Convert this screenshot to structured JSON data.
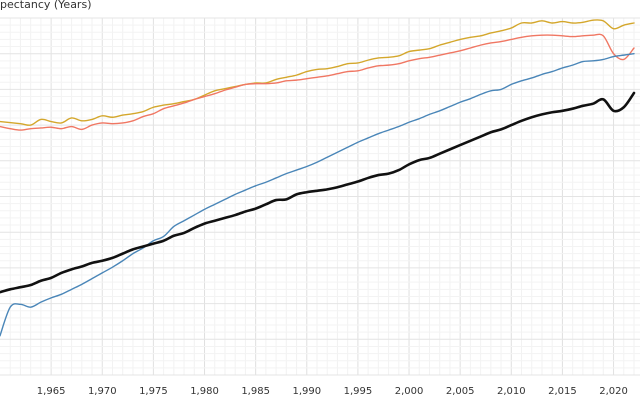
{
  "chart_data": {
    "type": "line",
    "ylabel": "pectancy (Years)",
    "grid": true,
    "x_ticks": [
      {
        "value": 1965,
        "label": "1,965"
      },
      {
        "value": 1970,
        "label": "1,970"
      },
      {
        "value": 1975,
        "label": "1,975"
      },
      {
        "value": 1980,
        "label": "1,980"
      },
      {
        "value": 1985,
        "label": "1,985"
      },
      {
        "value": 1990,
        "label": "1,990"
      },
      {
        "value": 1995,
        "label": "1,995"
      },
      {
        "value": 2000,
        "label": "2,000"
      },
      {
        "value": 2005,
        "label": "2,005"
      },
      {
        "value": 2010,
        "label": "2,010"
      },
      {
        "value": 2015,
        "label": "2,015"
      },
      {
        "value": 2020,
        "label": "2,020"
      }
    ],
    "series": [
      {
        "color": "#d4a72c",
        "points": [
          [
            1960,
            60.5
          ],
          [
            1962,
            60.2
          ],
          [
            1963,
            60.0
          ],
          [
            1964,
            60.8
          ],
          [
            1965,
            60.5
          ],
          [
            1966,
            60.3
          ],
          [
            1967,
            61.0
          ],
          [
            1968,
            60.6
          ],
          [
            1969,
            60.8
          ],
          [
            1970,
            61.3
          ],
          [
            1971,
            61.1
          ],
          [
            1972,
            61.4
          ],
          [
            1973,
            61.6
          ],
          [
            1974,
            61.9
          ],
          [
            1975,
            62.5
          ],
          [
            1976,
            62.8
          ],
          [
            1977,
            63.0
          ],
          [
            1978,
            63.3
          ],
          [
            1979,
            63.6
          ],
          [
            1980,
            64.2
          ],
          [
            1981,
            64.8
          ],
          [
            1982,
            65.1
          ],
          [
            1983,
            65.4
          ],
          [
            1984,
            65.7
          ],
          [
            1985,
            65.9
          ],
          [
            1986,
            65.9
          ],
          [
            1987,
            66.4
          ],
          [
            1988,
            66.7
          ],
          [
            1989,
            67.0
          ],
          [
            1990,
            67.5
          ],
          [
            1991,
            67.8
          ],
          [
            1992,
            67.9
          ],
          [
            1993,
            68.2
          ],
          [
            1994,
            68.6
          ],
          [
            1995,
            68.7
          ],
          [
            1996,
            69.1
          ],
          [
            1997,
            69.4
          ],
          [
            1998,
            69.5
          ],
          [
            1999,
            69.7
          ],
          [
            2000,
            70.3
          ],
          [
            2001,
            70.5
          ],
          [
            2002,
            70.7
          ],
          [
            2003,
            71.2
          ],
          [
            2004,
            71.6
          ],
          [
            2005,
            72.0
          ],
          [
            2006,
            72.3
          ],
          [
            2007,
            72.5
          ],
          [
            2008,
            72.9
          ],
          [
            2009,
            73.2
          ],
          [
            2010,
            73.6
          ],
          [
            2011,
            74.3
          ],
          [
            2012,
            74.3
          ],
          [
            2013,
            74.6
          ],
          [
            2014,
            74.3
          ],
          [
            2015,
            74.5
          ],
          [
            2016,
            74.3
          ],
          [
            2017,
            74.4
          ],
          [
            2018,
            74.7
          ],
          [
            2019,
            74.6
          ],
          [
            2020,
            73.5
          ],
          [
            2021,
            74.0
          ],
          [
            2022,
            74.3
          ]
        ]
      },
      {
        "color": "#f07763",
        "points": [
          [
            1960,
            59.8
          ],
          [
            1961,
            59.5
          ],
          [
            1962,
            59.3
          ],
          [
            1963,
            59.5
          ],
          [
            1964,
            59.6
          ],
          [
            1965,
            59.7
          ],
          [
            1966,
            59.5
          ],
          [
            1967,
            59.8
          ],
          [
            1968,
            59.4
          ],
          [
            1969,
            60.0
          ],
          [
            1970,
            60.3
          ],
          [
            1971,
            60.2
          ],
          [
            1972,
            60.3
          ],
          [
            1973,
            60.6
          ],
          [
            1974,
            61.2
          ],
          [
            1975,
            61.6
          ],
          [
            1976,
            62.3
          ],
          [
            1977,
            62.7
          ],
          [
            1978,
            63.1
          ],
          [
            1979,
            63.6
          ],
          [
            1980,
            64.0
          ],
          [
            1981,
            64.4
          ],
          [
            1982,
            64.9
          ],
          [
            1983,
            65.3
          ],
          [
            1984,
            65.7
          ],
          [
            1985,
            65.8
          ],
          [
            1986,
            65.8
          ],
          [
            1987,
            65.9
          ],
          [
            1988,
            66.2
          ],
          [
            1989,
            66.3
          ],
          [
            1990,
            66.5
          ],
          [
            1991,
            66.7
          ],
          [
            1992,
            66.9
          ],
          [
            1993,
            67.2
          ],
          [
            1994,
            67.5
          ],
          [
            1995,
            67.6
          ],
          [
            1996,
            68.0
          ],
          [
            1997,
            68.3
          ],
          [
            1998,
            68.4
          ],
          [
            1999,
            68.6
          ],
          [
            2000,
            69.0
          ],
          [
            2001,
            69.3
          ],
          [
            2002,
            69.5
          ],
          [
            2003,
            69.8
          ],
          [
            2004,
            70.1
          ],
          [
            2005,
            70.4
          ],
          [
            2006,
            70.8
          ],
          [
            2007,
            71.2
          ],
          [
            2008,
            71.5
          ],
          [
            2009,
            71.7
          ],
          [
            2010,
            72.0
          ],
          [
            2011,
            72.3
          ],
          [
            2012,
            72.5
          ],
          [
            2013,
            72.6
          ],
          [
            2014,
            72.6
          ],
          [
            2015,
            72.5
          ],
          [
            2016,
            72.4
          ],
          [
            2017,
            72.5
          ],
          [
            2018,
            72.6
          ],
          [
            2019,
            72.5
          ],
          [
            2020,
            70.0
          ],
          [
            2021,
            69.2
          ],
          [
            2022,
            70.8
          ]
        ]
      },
      {
        "color": "#4a86b8",
        "points": [
          [
            1960,
            30.5
          ],
          [
            1961,
            34.5
          ],
          [
            1962,
            34.9
          ],
          [
            1963,
            34.5
          ],
          [
            1964,
            35.2
          ],
          [
            1965,
            35.8
          ],
          [
            1966,
            36.3
          ],
          [
            1967,
            37.0
          ],
          [
            1968,
            37.7
          ],
          [
            1969,
            38.5
          ],
          [
            1970,
            39.3
          ],
          [
            1971,
            40.1
          ],
          [
            1972,
            41.0
          ],
          [
            1973,
            42.0
          ],
          [
            1974,
            42.8
          ],
          [
            1975,
            43.8
          ],
          [
            1976,
            44.4
          ],
          [
            1977,
            45.8
          ],
          [
            1978,
            46.6
          ],
          [
            1979,
            47.4
          ],
          [
            1980,
            48.2
          ],
          [
            1981,
            48.9
          ],
          [
            1982,
            49.6
          ],
          [
            1983,
            50.3
          ],
          [
            1984,
            50.9
          ],
          [
            1985,
            51.5
          ],
          [
            1986,
            52.0
          ],
          [
            1987,
            52.6
          ],
          [
            1988,
            53.2
          ],
          [
            1989,
            53.7
          ],
          [
            1990,
            54.2
          ],
          [
            1991,
            54.8
          ],
          [
            1992,
            55.5
          ],
          [
            1993,
            56.2
          ],
          [
            1994,
            56.9
          ],
          [
            1995,
            57.6
          ],
          [
            1996,
            58.2
          ],
          [
            1997,
            58.8
          ],
          [
            1998,
            59.3
          ],
          [
            1999,
            59.8
          ],
          [
            2000,
            60.4
          ],
          [
            2001,
            60.9
          ],
          [
            2002,
            61.5
          ],
          [
            2003,
            62.0
          ],
          [
            2004,
            62.6
          ],
          [
            2005,
            63.2
          ],
          [
            2006,
            63.7
          ],
          [
            2007,
            64.3
          ],
          [
            2008,
            64.8
          ],
          [
            2009,
            65.0
          ],
          [
            2010,
            65.7
          ],
          [
            2011,
            66.2
          ],
          [
            2012,
            66.6
          ],
          [
            2013,
            67.1
          ],
          [
            2014,
            67.5
          ],
          [
            2015,
            68.0
          ],
          [
            2016,
            68.4
          ],
          [
            2017,
            68.9
          ],
          [
            2018,
            69.0
          ],
          [
            2019,
            69.2
          ],
          [
            2020,
            69.6
          ],
          [
            2021,
            69.8
          ],
          [
            2022,
            70.0
          ]
        ]
      },
      {
        "color": "#111111",
        "points": [
          [
            1960,
            36.6
          ],
          [
            1961,
            37.0
          ],
          [
            1962,
            37.3
          ],
          [
            1963,
            37.6
          ],
          [
            1964,
            38.2
          ],
          [
            1965,
            38.6
          ],
          [
            1966,
            39.3
          ],
          [
            1967,
            39.8
          ],
          [
            1968,
            40.2
          ],
          [
            1969,
            40.7
          ],
          [
            1970,
            41.0
          ],
          [
            1971,
            41.4
          ],
          [
            1972,
            42.0
          ],
          [
            1973,
            42.6
          ],
          [
            1974,
            43.0
          ],
          [
            1975,
            43.4
          ],
          [
            1976,
            43.8
          ],
          [
            1977,
            44.5
          ],
          [
            1978,
            44.9
          ],
          [
            1979,
            45.6
          ],
          [
            1980,
            46.2
          ],
          [
            1981,
            46.6
          ],
          [
            1982,
            47.0
          ],
          [
            1983,
            47.4
          ],
          [
            1984,
            47.9
          ],
          [
            1985,
            48.3
          ],
          [
            1986,
            48.9
          ],
          [
            1987,
            49.5
          ],
          [
            1988,
            49.6
          ],
          [
            1989,
            50.3
          ],
          [
            1990,
            50.6
          ],
          [
            1991,
            50.8
          ],
          [
            1992,
            51.0
          ],
          [
            1993,
            51.3
          ],
          [
            1994,
            51.7
          ],
          [
            1995,
            52.1
          ],
          [
            1996,
            52.6
          ],
          [
            1997,
            53.0
          ],
          [
            1998,
            53.2
          ],
          [
            1999,
            53.7
          ],
          [
            2000,
            54.5
          ],
          [
            2001,
            55.1
          ],
          [
            2002,
            55.4
          ],
          [
            2003,
            56.0
          ],
          [
            2004,
            56.6
          ],
          [
            2005,
            57.2
          ],
          [
            2006,
            57.8
          ],
          [
            2007,
            58.4
          ],
          [
            2008,
            59.0
          ],
          [
            2009,
            59.4
          ],
          [
            2010,
            60.0
          ],
          [
            2011,
            60.6
          ],
          [
            2012,
            61.1
          ],
          [
            2013,
            61.5
          ],
          [
            2014,
            61.8
          ],
          [
            2015,
            62.0
          ],
          [
            2016,
            62.3
          ],
          [
            2017,
            62.7
          ],
          [
            2018,
            63.0
          ],
          [
            2019,
            63.6
          ],
          [
            2020,
            62.0
          ],
          [
            2021,
            62.5
          ],
          [
            2022,
            64.5
          ]
        ]
      }
    ]
  }
}
